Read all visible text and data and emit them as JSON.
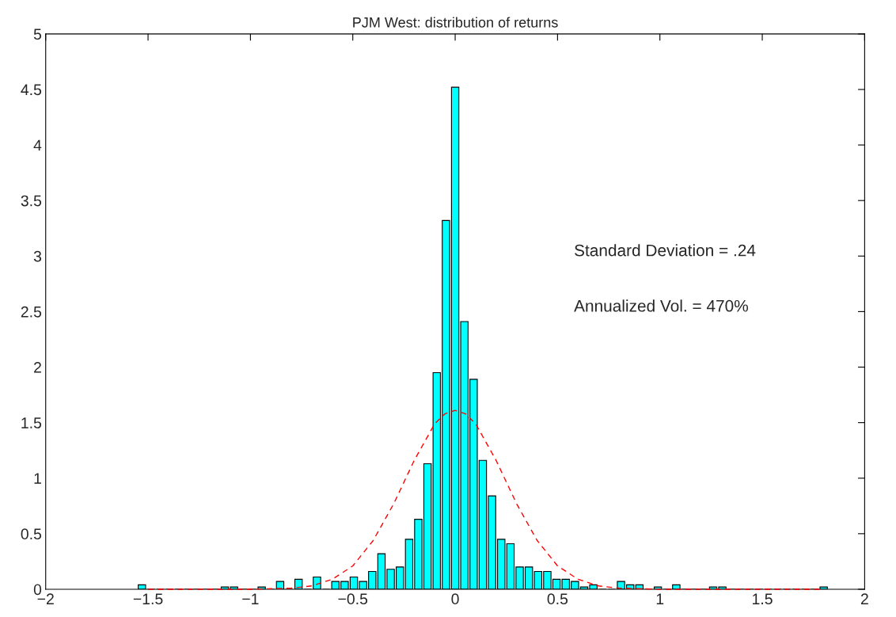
{
  "chart_data": {
    "type": "histogram",
    "title": "PJM West: distribution of returns",
    "bins": [
      -1.5525,
      -1.5075,
      -1.4625,
      -1.4175,
      -1.3725,
      -1.3275,
      -1.2825,
      -1.2375,
      -1.1925,
      -1.1475,
      -1.1025,
      -1.0575,
      -1.0125,
      -0.9675,
      -0.9225,
      -0.8775,
      -0.8325,
      -0.7875,
      -0.7425,
      -0.6975,
      -0.6525,
      -0.6075,
      -0.5625,
      -0.5175,
      -0.4725,
      -0.4275,
      -0.3825,
      -0.3375,
      -0.2925,
      -0.2475,
      -0.2025,
      -0.1575,
      -0.1125,
      -0.0675,
      -0.0225,
      0.0225,
      0.0675,
      0.1125,
      0.1575,
      0.2025,
      0.2475,
      0.2925,
      0.3375,
      0.3825,
      0.4275,
      0.4725,
      0.5175,
      0.5625,
      0.6075,
      0.6525,
      0.6975,
      0.7425,
      0.7875,
      0.8325,
      0.8775,
      0.9225,
      0.9675,
      1.0125,
      1.0575,
      1.1025,
      1.1475,
      1.1925,
      1.2375,
      1.2825,
      1.3275,
      1.3725,
      1.4175,
      1.4625,
      1.5075,
      1.5525,
      1.5975,
      1.6425,
      1.6875,
      1.7325,
      1.7775,
      1.8225
    ],
    "values": [
      0.04,
      0,
      0,
      0,
      0,
      0,
      0,
      0,
      0,
      0.02,
      0.02,
      0,
      0,
      0.02,
      0,
      0.07,
      0,
      0.09,
      0,
      0.11,
      0,
      0.07,
      0.07,
      0.11,
      0.07,
      0.16,
      0.32,
      0.18,
      0.2,
      0.45,
      0.63,
      1.13,
      1.95,
      3.32,
      4.52,
      2.41,
      1.89,
      1.16,
      0.84,
      0.45,
      0.41,
      0.2,
      0.2,
      0.16,
      0.16,
      0.09,
      0.09,
      0.07,
      0.02,
      0.04,
      0,
      0,
      0.07,
      0.04,
      0.04,
      0,
      0.02,
      0,
      0.04,
      0,
      0,
      0,
      0.02,
      0.02,
      0,
      0,
      0,
      0,
      0,
      0,
      0,
      0,
      0,
      0,
      0.02
    ],
    "color": "#00ffff",
    "series": [
      {
        "type": "line",
        "color": "#ff0000",
        "line_style": "dashed",
        "x": [
          -1.5,
          -1.0,
          -0.8,
          -0.7,
          -0.6,
          -0.5,
          -0.4,
          -0.3,
          -0.2,
          -0.1,
          -0.05,
          0,
          0.05,
          0.1,
          0.2,
          0.3,
          0.4,
          0.5,
          0.6,
          0.7,
          0.8,
          1.0,
          1.5,
          1.8
        ],
        "values": [
          0,
          0,
          0.01,
          0.03,
          0.09,
          0.21,
          0.44,
          0.77,
          1.16,
          1.49,
          1.58,
          1.61,
          1.58,
          1.49,
          1.16,
          0.77,
          0.44,
          0.21,
          0.09,
          0.03,
          0.01,
          0,
          0,
          0
        ]
      }
    ],
    "xlim": [
      -2,
      2
    ],
    "xticks": [
      -2,
      -1.5,
      -1,
      -0.5,
      0,
      0.5,
      1,
      1.5,
      2
    ],
    "ylim": [
      0,
      5
    ],
    "yticks": [
      0,
      0.5,
      1,
      1.5,
      2,
      2.5,
      3,
      3.5,
      4,
      4.5,
      5
    ],
    "grid": false,
    "annotations": [
      "Standard Deviation = .24",
      "Annualized Vol. = 470%"
    ]
  }
}
